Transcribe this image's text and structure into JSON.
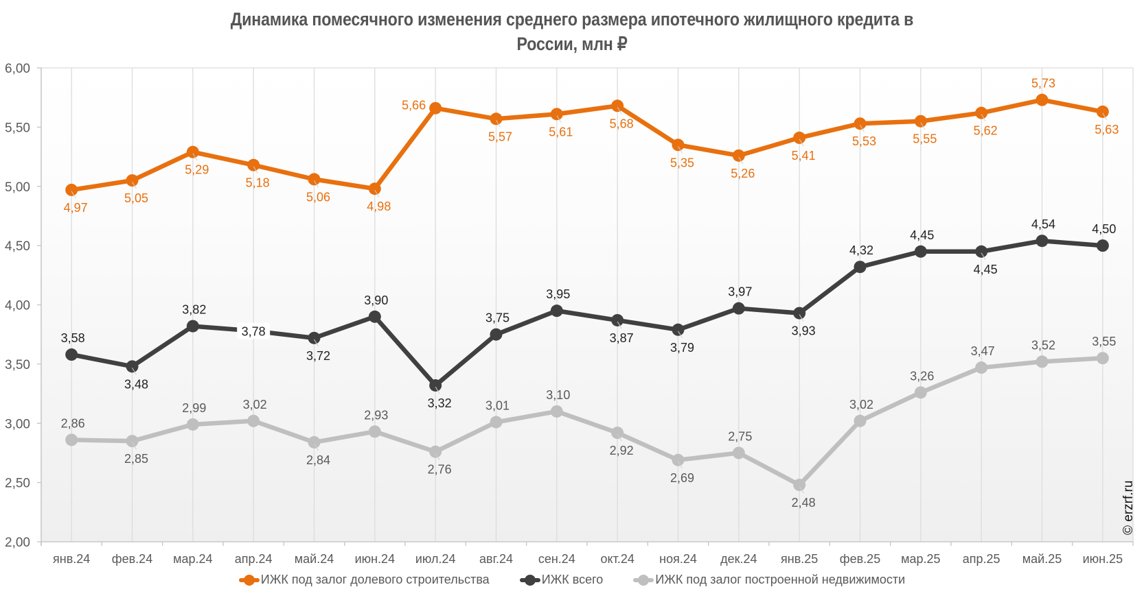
{
  "chart_data": {
    "type": "line",
    "title_line1": "Динамика помесячного изменения среднего размера ипотечного жилищного кредита в",
    "title_line2": "России, млн ₽",
    "xlabel": "",
    "ylabel": "",
    "ylim": [
      2.0,
      6.0
    ],
    "yticks": [
      "2,00",
      "2,50",
      "3,00",
      "3,50",
      "4,00",
      "4,50",
      "5,00",
      "5,50",
      "6,00"
    ],
    "ytick_values": [
      2.0,
      2.5,
      3.0,
      3.5,
      4.0,
      4.5,
      5.0,
      5.5,
      6.0
    ],
    "grid": "vertical-only",
    "legend_position": "bottom",
    "categories": [
      "янв.24",
      "фев.24",
      "мар.24",
      "апр.24",
      "май.24",
      "июн.24",
      "июл.24",
      "авг.24",
      "сен.24",
      "окт.24",
      "ноя.24",
      "дек.24",
      "янв.25",
      "фев.25",
      "мар.25",
      "апр.25",
      "май.25",
      "июн.25"
    ],
    "series": [
      {
        "name": "ИЖК под залог долевого строительства",
        "color": "#E8700F",
        "label_color": "#E8700F",
        "values": [
          4.97,
          5.05,
          5.29,
          5.18,
          5.06,
          4.98,
          5.66,
          5.57,
          5.61,
          5.68,
          5.35,
          5.26,
          5.41,
          5.53,
          5.55,
          5.62,
          5.73,
          5.63
        ],
        "labels": [
          "4,97",
          "5,05",
          "5,29",
          "5,18",
          "5,06",
          "4,98",
          "5,66",
          "5,57",
          "5,61",
          "5,68",
          "5,35",
          "5,26",
          "5,41",
          "5,53",
          "5,55",
          "5,62",
          "5,73",
          "5,63"
        ],
        "label_placement": [
          "below",
          "below",
          "below",
          "below",
          "below",
          "below",
          "left",
          "below",
          "below",
          "below",
          "below",
          "below",
          "below",
          "below",
          "below",
          "below",
          "above",
          "below"
        ]
      },
      {
        "name": "ИЖК всего",
        "color": "#404040",
        "label_color": "#222222",
        "values": [
          3.58,
          3.48,
          3.82,
          3.78,
          3.72,
          3.9,
          3.32,
          3.75,
          3.95,
          3.87,
          3.79,
          3.97,
          3.93,
          4.32,
          4.45,
          4.45,
          4.54,
          4.5
        ],
        "labels": [
          "3,58",
          "3,48",
          "3,82",
          "3,78",
          "3,72",
          "3,90",
          "3,32",
          "3,75",
          "3,95",
          "3,87",
          "3,79",
          "3,97",
          "3,93",
          "4,32",
          "4,45",
          "4,45",
          "4,54",
          "4,50"
        ],
        "label_placement": [
          "above",
          "below",
          "above",
          "center",
          "below",
          "above",
          "below",
          "above",
          "above",
          "below",
          "below",
          "above",
          "below",
          "above",
          "above",
          "below",
          "above",
          "above"
        ]
      },
      {
        "name": "ИЖК под залог построенной недвижимости",
        "color": "#BFBFBF",
        "label_color": "#595959",
        "values": [
          2.86,
          2.85,
          2.99,
          3.02,
          2.84,
          2.93,
          2.76,
          3.01,
          3.1,
          2.92,
          2.69,
          2.75,
          2.48,
          3.02,
          3.26,
          3.47,
          3.52,
          3.55
        ],
        "labels": [
          "2,86",
          "2,85",
          "2,99",
          "3,02",
          "2,84",
          "2,93",
          "2,76",
          "3,01",
          "3,10",
          "2,92",
          "2,69",
          "2,75",
          "2,48",
          "3,02",
          "3,26",
          "3,47",
          "3,52",
          "3,55"
        ],
        "label_placement": [
          "above",
          "below",
          "above",
          "above",
          "below",
          "above",
          "below",
          "above",
          "above",
          "below",
          "below",
          "above",
          "below",
          "above",
          "above",
          "above",
          "above",
          "above"
        ]
      }
    ]
  },
  "watermark": "© erzrf.ru",
  "legend": {
    "items": [
      {
        "label": "ИЖК под залог долевого строительства",
        "color": "#E8700F"
      },
      {
        "label": "ИЖК всего",
        "color": "#404040"
      },
      {
        "label": "ИЖК под залог построенной недвижимости",
        "color": "#BFBFBF"
      }
    ]
  }
}
